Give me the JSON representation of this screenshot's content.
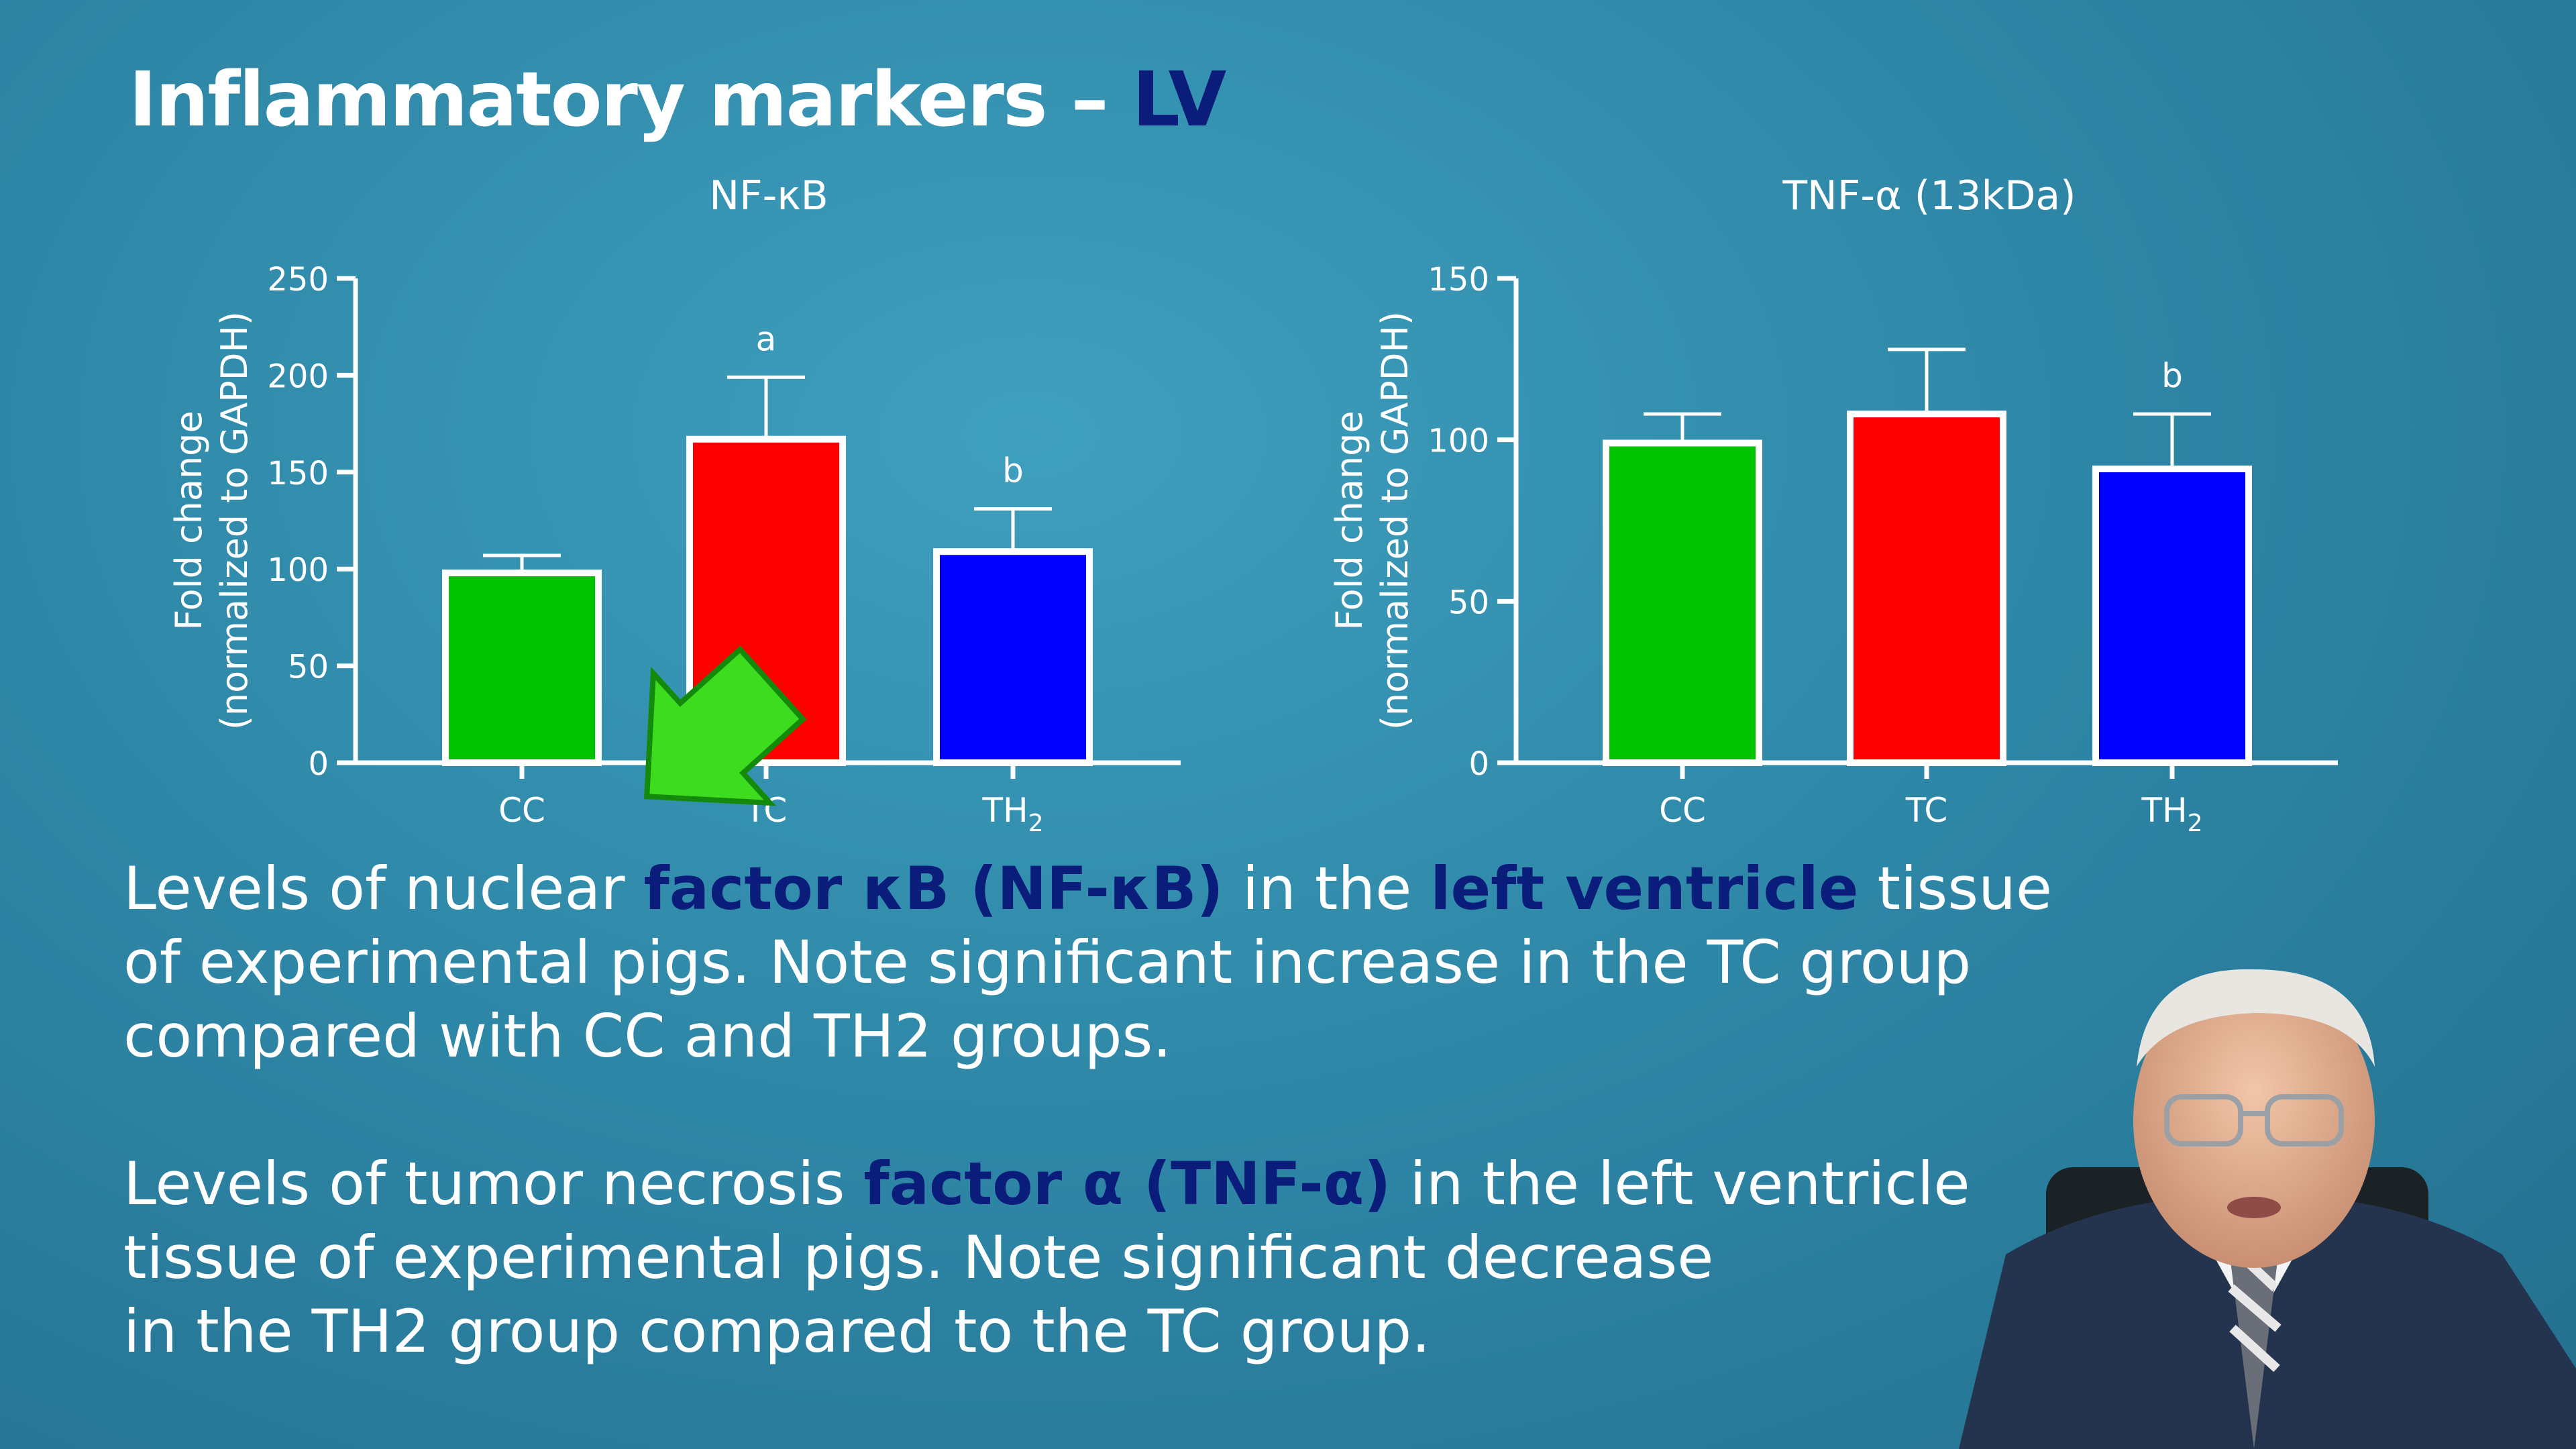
{
  "slide": {
    "title_prefix": "Inflammatory markers – ",
    "title_highlight": "LV"
  },
  "paragraphs": [
    {
      "lines": [
        [
          {
            "t": "Levels of nuclear ",
            "hl": false
          },
          {
            "t": "factor κB (NF-κB)",
            "hl": true
          },
          {
            "t": " in the ",
            "hl": false
          },
          {
            "t": "left ventricle",
            "hl": true
          },
          {
            "t": " tissue",
            "hl": false
          }
        ],
        [
          {
            "t": "of experimental pigs. Note significant increase in the TC group",
            "hl": false
          }
        ],
        [
          {
            "t": "compared with CC and TH2 groups.",
            "hl": false
          }
        ]
      ]
    },
    {
      "lines": [
        [
          {
            "t": "Levels of tumor necrosis ",
            "hl": false
          },
          {
            "t": "factor α (TNF-α)",
            "hl": true
          },
          {
            "t": " in the left ventricle",
            "hl": false
          }
        ],
        [
          {
            "t": "tissue of experimental pigs. Note significant decrease",
            "hl": false
          }
        ],
        [
          {
            "t": "in the TH2 group compared to the TC group.",
            "hl": false
          }
        ]
      ]
    }
  ],
  "colors": {
    "CC": "#00c400",
    "TC": "#ff0000",
    "TH2": "#0000ff",
    "highlight": "#0b1d7a",
    "arrow": "#3ddc1e"
  },
  "chart_data": [
    {
      "type": "bar",
      "title": "NF-κB",
      "ylabel_line1": "Fold change",
      "ylabel_line2": "(normalized to GAPDH)",
      "categories": [
        "CC",
        "TC",
        "TH2"
      ],
      "category_labels": [
        {
          "main": "CC",
          "sub": ""
        },
        {
          "main": "TC",
          "sub": ""
        },
        {
          "main": "TH",
          "sub": "2"
        }
      ],
      "values": [
        98,
        167,
        109
      ],
      "errors": [
        9,
        32,
        22
      ],
      "annotations": [
        "",
        "a",
        "b"
      ],
      "ylim": [
        0,
        250
      ],
      "yticks": [
        0,
        50,
        100,
        150,
        200,
        250
      ],
      "grid": false
    },
    {
      "type": "bar",
      "title": "TNF-α (13kDa)",
      "ylabel_line1": "Fold change",
      "ylabel_line2": "(normalized to GAPDH)",
      "categories": [
        "CC",
        "TC",
        "TH2"
      ],
      "category_labels": [
        {
          "main": "CC",
          "sub": ""
        },
        {
          "main": "TC",
          "sub": ""
        },
        {
          "main": "TH",
          "sub": "2"
        }
      ],
      "values": [
        99,
        108,
        91
      ],
      "errors": [
        9,
        20,
        17
      ],
      "annotations": [
        "",
        "",
        "b"
      ],
      "ylim": [
        0,
        150
      ],
      "yticks": [
        0,
        50,
        100,
        150
      ],
      "grid": false
    }
  ]
}
